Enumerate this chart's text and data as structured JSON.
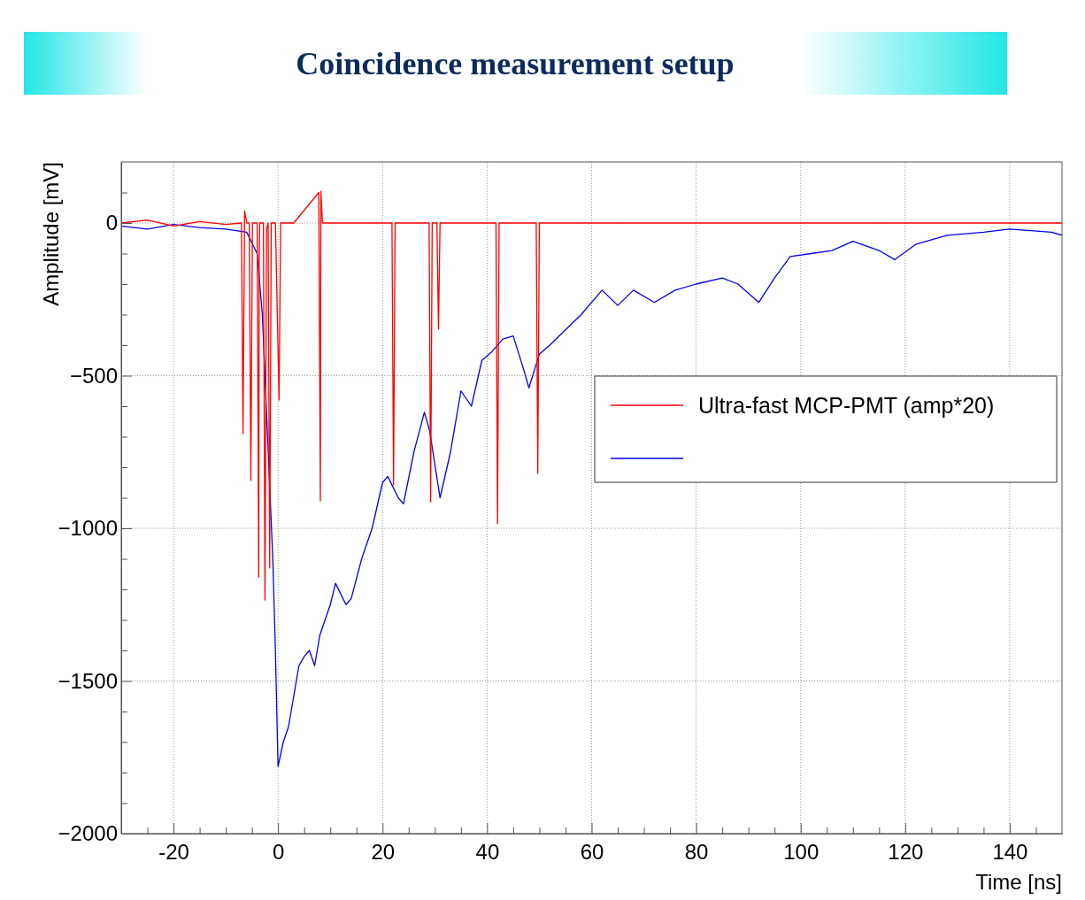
{
  "chart_data": {
    "type": "line",
    "title": "Coincidence measurement setup",
    "xlabel": "Time [ns]",
    "ylabel": "Amplitude [mV]",
    "xlim": [
      -30,
      150
    ],
    "ylim": [
      -2000,
      200
    ],
    "xticks": [
      {
        "value": -25,
        "label": null
      },
      -20,
      {
        "value": -15,
        "label": null
      },
      {
        "value": -10,
        "label": null
      },
      {
        "value": -5,
        "label": null
      },
      0,
      {
        "value": 5,
        "label": null
      },
      {
        "value": 10,
        "label": null
      },
      {
        "value": 15,
        "label": null
      },
      20,
      {
        "value": 25,
        "label": null
      },
      {
        "value": 30,
        "label": null
      },
      {
        "value": 35,
        "label": null
      },
      40,
      {
        "value": 45,
        "label": null
      },
      {
        "value": 50,
        "label": null
      },
      {
        "value": 55,
        "label": null
      },
      60,
      {
        "value": 65,
        "label": null
      },
      {
        "value": 70,
        "label": null
      },
      {
        "value": 75,
        "label": null
      },
      80,
      {
        "value": 85,
        "label": null
      },
      {
        "value": 90,
        "label": null
      },
      {
        "value": 95,
        "label": null
      },
      100,
      {
        "value": 105,
        "label": null
      },
      {
        "value": 110,
        "label": null
      },
      {
        "value": 115,
        "label": null
      },
      120,
      {
        "value": 125,
        "label": null
      },
      {
        "value": 130,
        "label": null
      },
      {
        "value": 135,
        "label": null
      },
      140,
      {
        "value": 145,
        "label": null
      }
    ],
    "yticks": [
      -2000,
      {
        "value": -1900,
        "label": null
      },
      {
        "value": -1800,
        "label": null
      },
      {
        "value": -1700,
        "label": null
      },
      {
        "value": -1600,
        "label": null
      },
      -1500,
      {
        "value": -1400,
        "label": null
      },
      {
        "value": -1300,
        "label": null
      },
      {
        "value": -1200,
        "label": null
      },
      {
        "value": -1100,
        "label": null
      },
      -1000,
      {
        "value": -900,
        "label": null
      },
      {
        "value": -800,
        "label": null
      },
      {
        "value": -700,
        "label": null
      },
      {
        "value": -600,
        "label": null
      },
      -500,
      {
        "value": -400,
        "label": null
      },
      {
        "value": -300,
        "label": null
      },
      {
        "value": -200,
        "label": null
      },
      {
        "value": -100,
        "label": null
      },
      0,
      {
        "value": 100,
        "label": null
      }
    ],
    "grid": true,
    "legend": "right",
    "marker": "none",
    "line_style": "solid",
    "series": [
      {
        "name": "Ultra-fast MCP-PMT (amp*20)",
        "color": "#ff0000",
        "x": [
          -30,
          -25,
          -20,
          -15,
          -10,
          -7,
          -6.7,
          -6.4,
          -6,
          -5.5,
          -5.2,
          -4.9,
          -4,
          -3.7,
          -3.6,
          -3.5,
          -2.8,
          -2.5,
          -2.2,
          -1.9,
          -1.6,
          -1.3,
          -0.5,
          0.2,
          0.5,
          3,
          7.8,
          8.1,
          8.2,
          8.5,
          15,
          21.8,
          22.1,
          22.4,
          28.9,
          29.2,
          29.5,
          30.4,
          30.7,
          31,
          35,
          41.7,
          42,
          42.3,
          49.4,
          49.7,
          50,
          60,
          80,
          100,
          120,
          140,
          150
        ],
        "values": [
          0,
          10,
          -10,
          5,
          -5,
          0,
          -690,
          40,
          0,
          0,
          -843,
          0,
          0,
          -1160,
          -100,
          0,
          0,
          -1235,
          -20,
          0,
          -1130,
          0,
          0,
          -580,
          0,
          0,
          100,
          -910,
          104,
          0,
          0,
          0,
          -858,
          0,
          0,
          -913,
          0,
          0,
          -348,
          0,
          0,
          0,
          -985,
          0,
          0,
          -820,
          0,
          0,
          0,
          0,
          0,
          0,
          0
        ]
      },
      {
        "color": "#0000ee",
        "x": [
          -30,
          -25,
          -20,
          -15,
          -10,
          -6,
          -4,
          -3,
          -2,
          -1,
          -0.5,
          0,
          1,
          2,
          3,
          4,
          5,
          6,
          7,
          8,
          10,
          11,
          13,
          14,
          16,
          18,
          20,
          21,
          23,
          24,
          26,
          28,
          29,
          31,
          33,
          35,
          37,
          39,
          41,
          43,
          45,
          47,
          48,
          50,
          52,
          55,
          58,
          62,
          65,
          68,
          72,
          76,
          80,
          85,
          88,
          92,
          95,
          98,
          102,
          106,
          110,
          115,
          118,
          122,
          128,
          135,
          140,
          148,
          150
        ],
        "values": [
          -10,
          -20,
          -5,
          -15,
          -20,
          -30,
          -100,
          -300,
          -700,
          -1100,
          -1400,
          -1780,
          -1700,
          -1650,
          -1550,
          -1450,
          -1420,
          -1400,
          -1450,
          -1350,
          -1250,
          -1180,
          -1250,
          -1230,
          -1100,
          -1000,
          -850,
          -830,
          -900,
          -920,
          -750,
          -620,
          -680,
          -900,
          -750,
          -550,
          -600,
          -450,
          -420,
          -380,
          -370,
          -480,
          -540,
          -430,
          -400,
          -350,
          -300,
          -220,
          -270,
          -220,
          -260,
          -220,
          -200,
          -180,
          -200,
          -260,
          -180,
          -110,
          -100,
          -90,
          -60,
          -90,
          -120,
          -70,
          -40,
          -30,
          -20,
          -30,
          -40
        ]
      }
    ]
  }
}
